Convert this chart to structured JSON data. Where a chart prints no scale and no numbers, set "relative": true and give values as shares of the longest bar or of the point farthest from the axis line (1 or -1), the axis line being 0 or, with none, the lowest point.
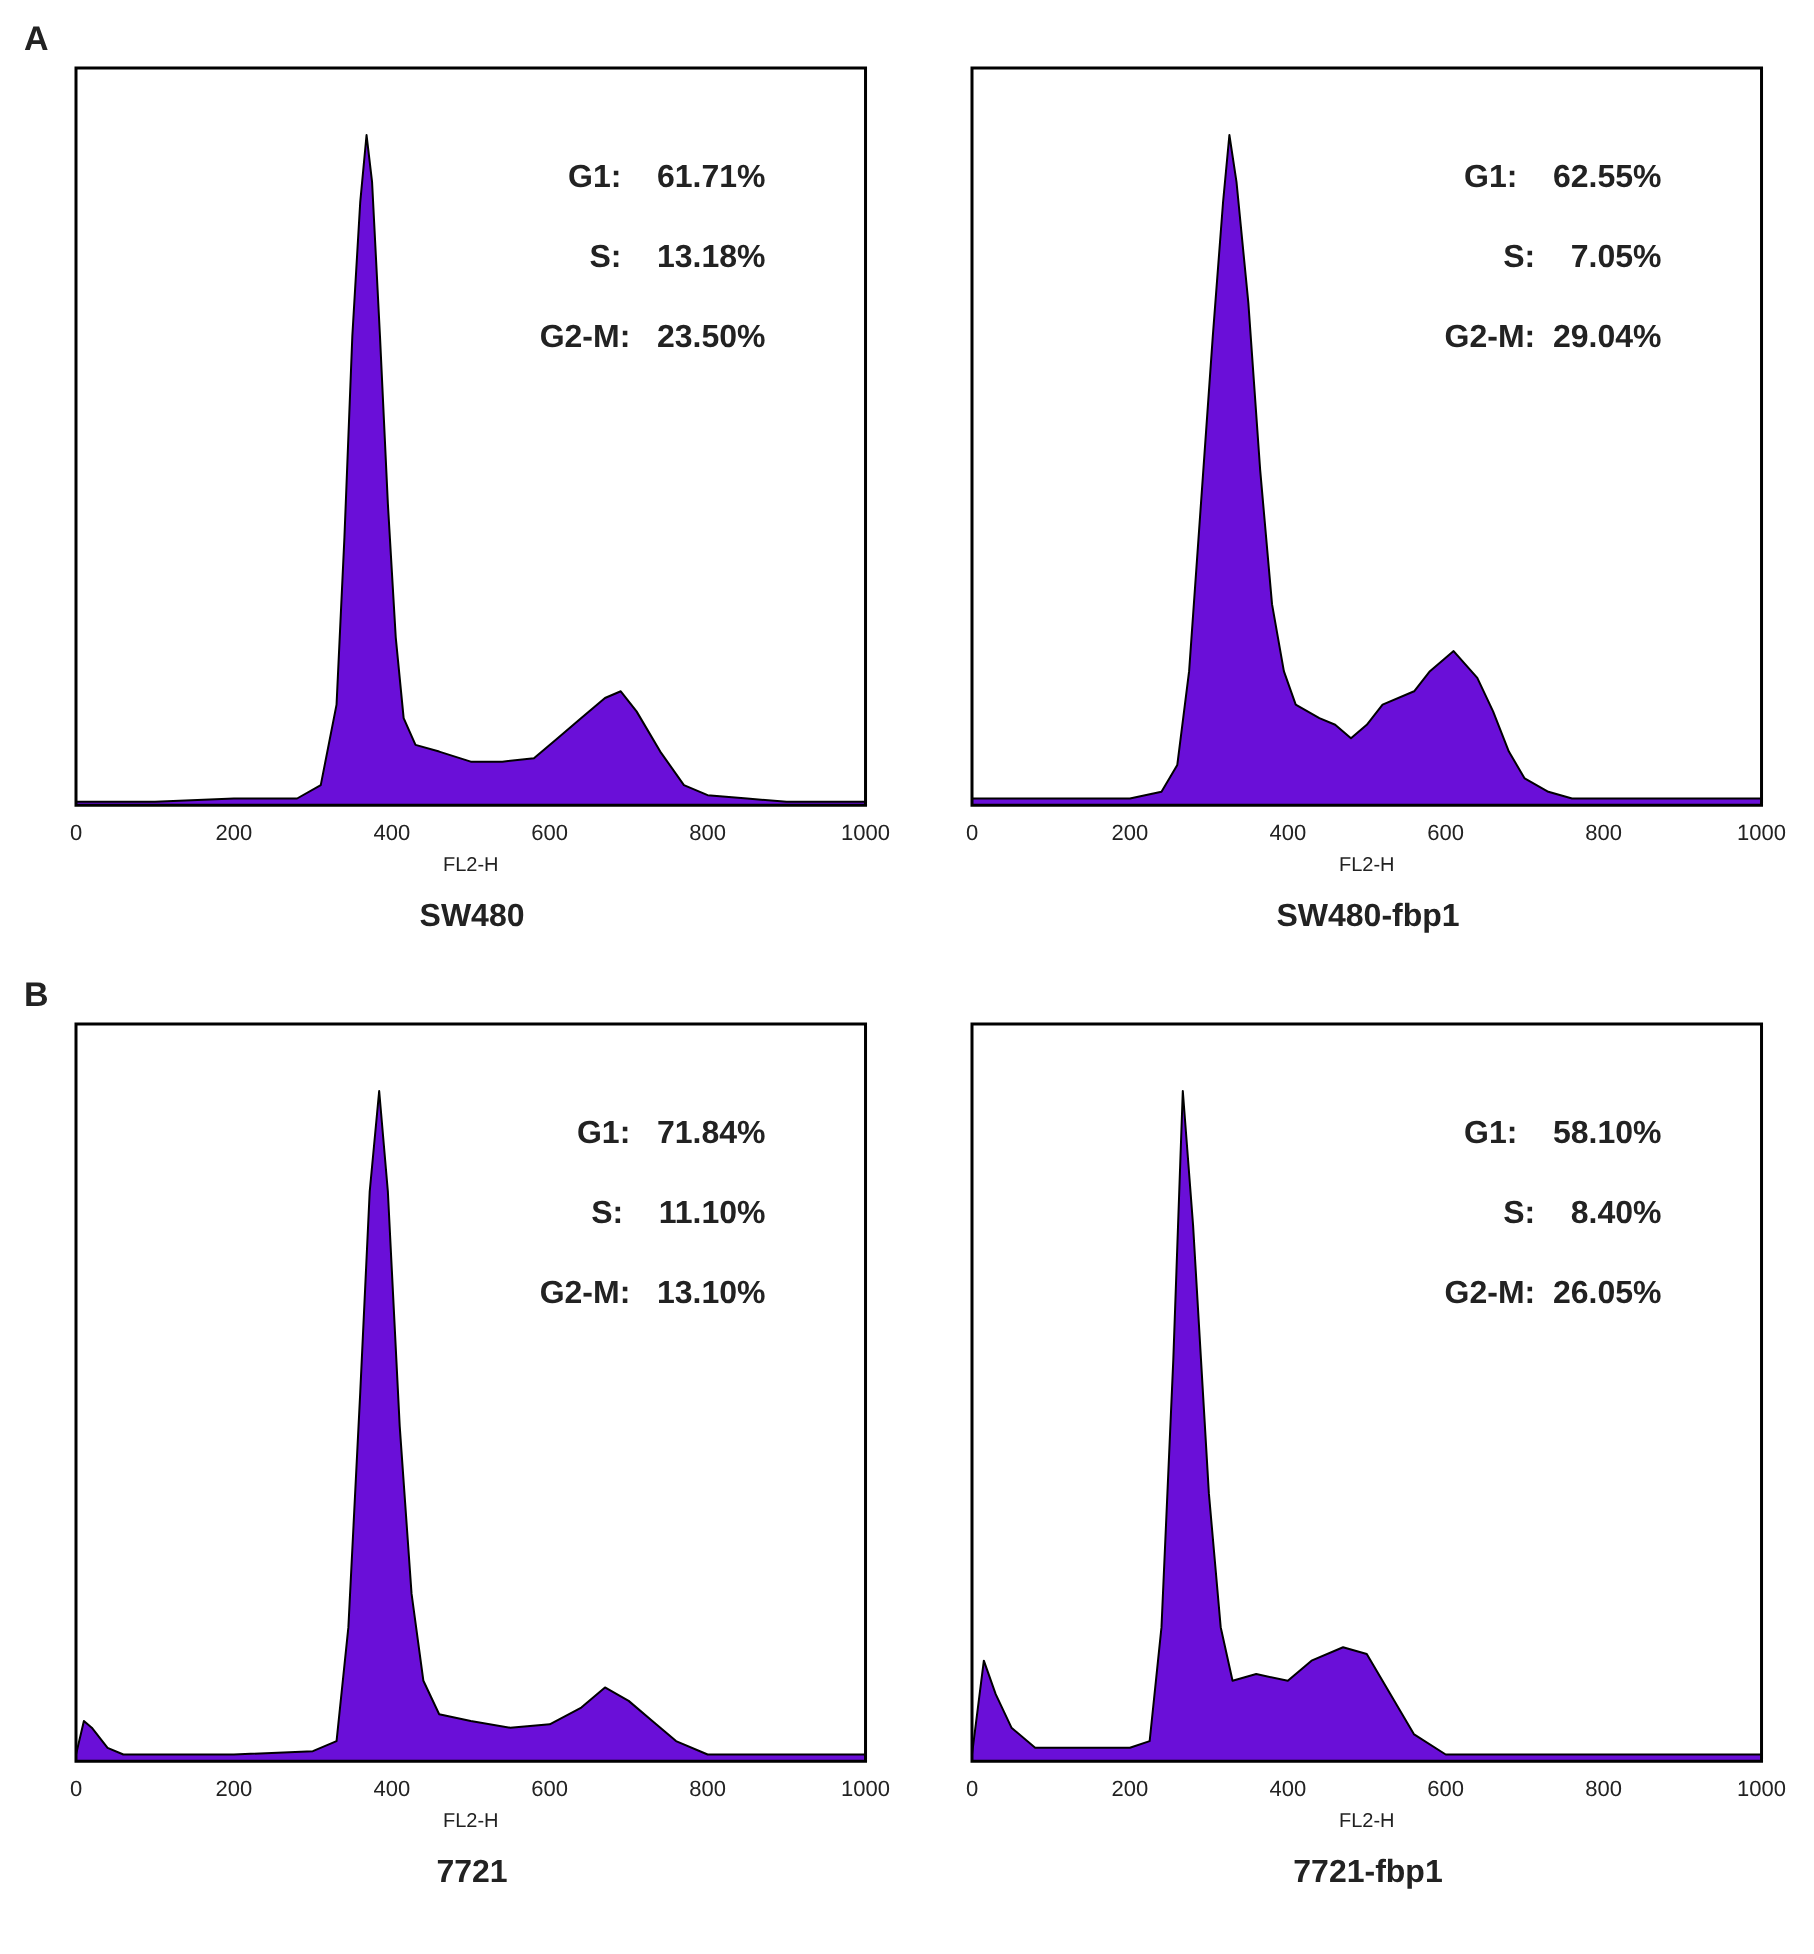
{
  "chart_data": [
    {
      "type": "area",
      "title": "SW480",
      "xlabel": "FL2-H",
      "relative": true,
      "xlim": [
        0,
        1000
      ],
      "xticks": [
        0,
        200,
        400,
        600,
        800,
        1000
      ],
      "grid": false,
      "legend": false,
      "annotations": [
        "A",
        "G1:    61.71%",
        "S:    13.18%",
        "G2-M:   23.50%"
      ],
      "series": [
        {
          "color": "#6a0fd8",
          "x": [
            0,
            100,
            200,
            280,
            310,
            330,
            340,
            350,
            360,
            368,
            375,
            385,
            395,
            405,
            415,
            430,
            460,
            500,
            540,
            580,
            610,
            640,
            670,
            690,
            710,
            740,
            770,
            800,
            850,
            900,
            1000
          ],
          "values": [
            0.005,
            0.005,
            0.01,
            0.01,
            0.03,
            0.15,
            0.4,
            0.7,
            0.9,
            1,
            0.93,
            0.7,
            0.45,
            0.25,
            0.13,
            0.09,
            0.08,
            0.065,
            0.065,
            0.07,
            0.1,
            0.13,
            0.16,
            0.17,
            0.14,
            0.08,
            0.03,
            0.015,
            0.01,
            0.005,
            0.005
          ]
        }
      ]
    },
    {
      "type": "area",
      "title": "SW480-fbp1",
      "xlabel": "FL2-H",
      "relative": true,
      "xlim": [
        0,
        1000
      ],
      "xticks": [
        0,
        200,
        400,
        600,
        800,
        1000
      ],
      "grid": false,
      "legend": false,
      "annotations": [
        "G1:    62.55%",
        "S:    7.05%",
        "G2-M:  29.04%"
      ],
      "series": [
        {
          "color": "#6a0fd8",
          "x": [
            0,
            200,
            240,
            260,
            275,
            290,
            305,
            318,
            326,
            335,
            350,
            365,
            380,
            395,
            410,
            440,
            460,
            480,
            500,
            520,
            560,
            580,
            600,
            610,
            640,
            660,
            680,
            700,
            730,
            760,
            1000
          ],
          "values": [
            0.01,
            0.01,
            0.02,
            0.06,
            0.2,
            0.45,
            0.7,
            0.9,
            1,
            0.93,
            0.75,
            0.5,
            0.3,
            0.2,
            0.15,
            0.13,
            0.12,
            0.1,
            0.12,
            0.15,
            0.17,
            0.2,
            0.22,
            0.23,
            0.19,
            0.14,
            0.08,
            0.04,
            0.02,
            0.01,
            0.01
          ]
        }
      ]
    },
    {
      "type": "area",
      "title": "7721",
      "xlabel": "FL2-H",
      "relative": true,
      "xlim": [
        0,
        1000
      ],
      "xticks": [
        0,
        200,
        400,
        600,
        800,
        1000
      ],
      "grid": false,
      "legend": false,
      "annotations": [
        "B",
        "G1:   71.84%",
        "S:    11.10%",
        "G2-M:   13.10%"
      ],
      "series": [
        {
          "color": "#6a0fd8",
          "x": [
            0,
            10,
            20,
            40,
            60,
            200,
            300,
            330,
            345,
            360,
            372,
            384,
            395,
            410,
            425,
            440,
            460,
            500,
            550,
            600,
            640,
            670,
            700,
            730,
            760,
            800,
            1000
          ],
          "values": [
            0.01,
            0.06,
            0.05,
            0.02,
            0.01,
            0.01,
            0.015,
            0.03,
            0.2,
            0.55,
            0.85,
            1,
            0.85,
            0.5,
            0.25,
            0.12,
            0.07,
            0.06,
            0.05,
            0.055,
            0.08,
            0.11,
            0.09,
            0.06,
            0.03,
            0.01,
            0.01
          ]
        }
      ]
    },
    {
      "type": "area",
      "title": "7721-fbp1",
      "xlabel": "FL2-H",
      "relative": true,
      "xlim": [
        0,
        1000
      ],
      "xticks": [
        0,
        200,
        400,
        600,
        800,
        1000
      ],
      "grid": false,
      "legend": false,
      "annotations": [
        "G1:    58.10%",
        "S:    8.40%",
        "G2-M:  26.05%"
      ],
      "series": [
        {
          "color": "#6a0fd8",
          "x": [
            0,
            15,
            30,
            50,
            80,
            200,
            225,
            240,
            255,
            267,
            280,
            300,
            315,
            330,
            360,
            400,
            430,
            470,
            500,
            530,
            560,
            600,
            1000
          ],
          "values": [
            0.01,
            0.15,
            0.1,
            0.05,
            0.02,
            0.02,
            0.03,
            0.2,
            0.6,
            1,
            0.8,
            0.4,
            0.2,
            0.12,
            0.13,
            0.12,
            0.15,
            0.17,
            0.16,
            0.1,
            0.04,
            0.01,
            0.01
          ]
        }
      ]
    }
  ]
}
